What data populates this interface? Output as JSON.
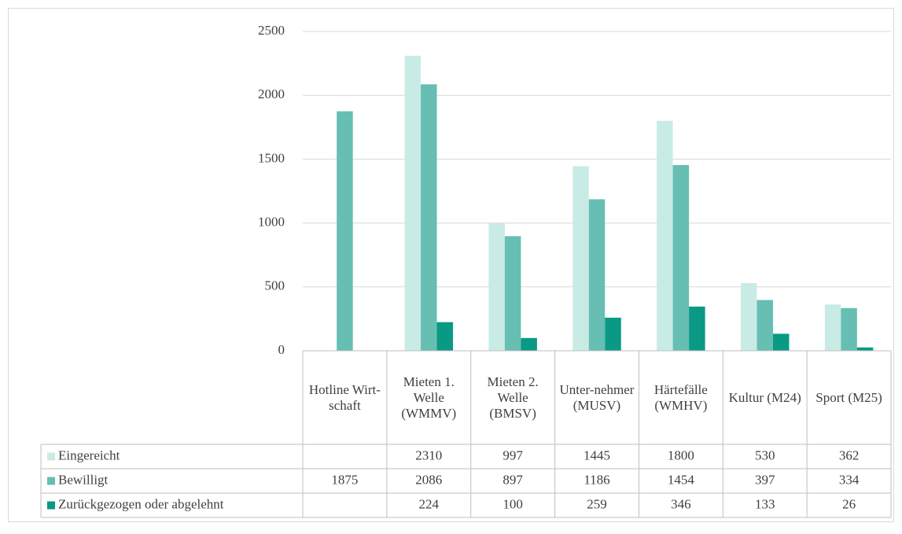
{
  "chart_data": {
    "type": "bar",
    "categories": [
      "Hotline Wirt-schaft",
      "Mieten 1. Welle (WMMV)",
      "Mieten 2. Welle (BMSV)",
      "Unter-nehmer (MUSV)",
      "Härtefälle (WMHV)",
      "Kultur (M24)",
      "Sport (M25)"
    ],
    "series": [
      {
        "name": "Eingereicht",
        "color": "#c9ebe5",
        "values": [
          null,
          2310,
          997,
          1445,
          1800,
          530,
          362
        ]
      },
      {
        "name": "Bewilligt",
        "color": "#66bfb2",
        "values": [
          1875,
          2086,
          897,
          1186,
          1454,
          397,
          334
        ]
      },
      {
        "name": "Zurückgezogen oder abgelehnt",
        "color": "#0a9985",
        "values": [
          null,
          224,
          100,
          259,
          346,
          133,
          26
        ]
      }
    ],
    "ylim": [
      0,
      2500
    ],
    "yticks": [
      0,
      500,
      1000,
      1500,
      2000,
      2500
    ],
    "grid": true,
    "data_table": true
  }
}
